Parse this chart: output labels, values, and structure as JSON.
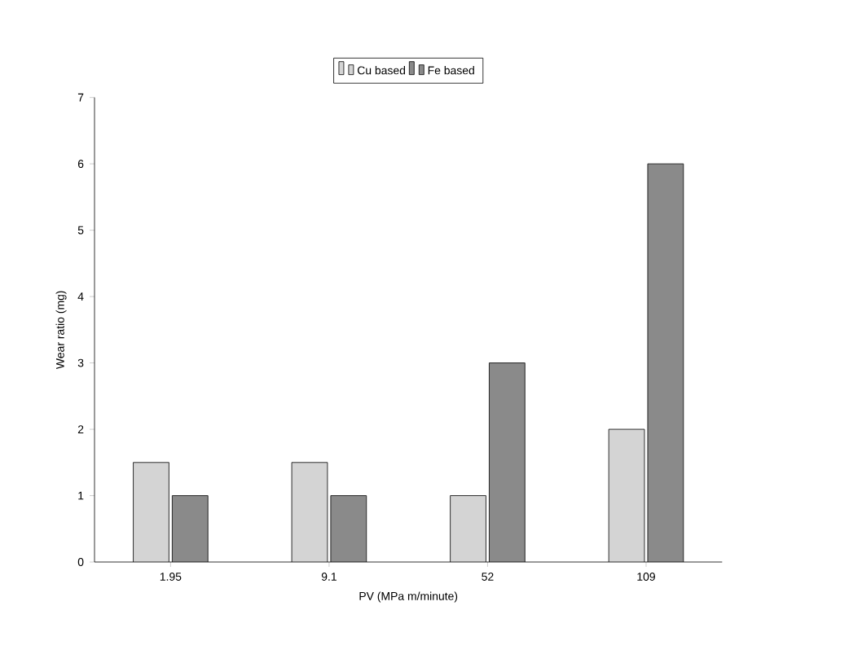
{
  "chart_data": {
    "type": "bar",
    "xlabel": "PV (MPa m/minute)",
    "ylabel": "Wear ratio (mg)",
    "categories": [
      "1.95",
      "9.1",
      "52",
      "109"
    ],
    "series": [
      {
        "name": "Cu based",
        "color": "#d4d4d4",
        "values": [
          1.5,
          1.5,
          1.0,
          2.0
        ]
      },
      {
        "name": "Fe based",
        "color": "#8a8a8a",
        "values": [
          1.0,
          1.0,
          3.0,
          6.0
        ]
      }
    ],
    "ylim": [
      0,
      7
    ],
    "yticks": [
      0,
      1,
      2,
      3,
      4,
      5,
      6,
      7
    ],
    "legend": "top"
  }
}
